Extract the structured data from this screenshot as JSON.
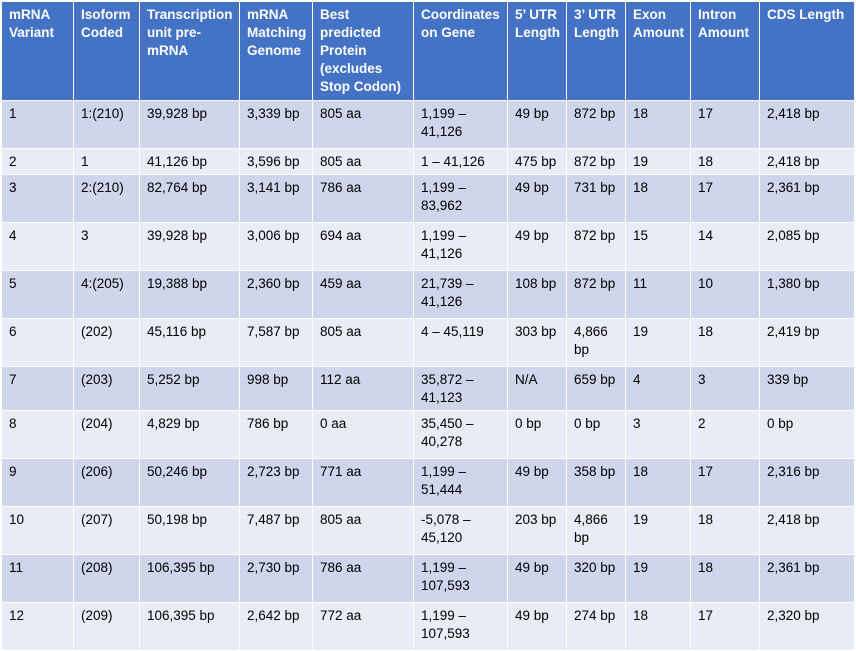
{
  "table": {
    "headers": [
      "mRNA Variant",
      "Isoform Coded",
      "Transcription unit pre-mRNA",
      "mRNA Matching Genome",
      "Best predicted Protein (excludes Stop Codon)",
      "Coordinates on Gene",
      "5’ UTR Length",
      "3’ UTR Length",
      "Exon Amount",
      "Intron Amount",
      "CDS Length"
    ],
    "rows": [
      [
        "1",
        "1:(210)",
        "39,928 bp",
        "3,339 bp",
        "805 aa",
        "1,199 – 41,126",
        "49 bp",
        "872 bp",
        "18",
        "17",
        "2,418 bp"
      ],
      [
        "2",
        "1",
        "41,126 bp",
        "3,596 bp",
        "805 aa",
        "1 – 41,126",
        "475 bp",
        "872 bp",
        "19",
        "18",
        "2,418 bp"
      ],
      [
        "3",
        "2:(210)",
        "82,764 bp",
        "3,141 bp",
        "786 aa",
        "1,199 – 83,962",
        "49 bp",
        "731 bp",
        "18",
        "17",
        "2,361 bp"
      ],
      [
        "4",
        "3",
        "39,928 bp",
        "3,006 bp",
        "694 aa",
        "1,199 – 41,126",
        "49 bp",
        "872 bp",
        "15",
        "14",
        "2,085 bp"
      ],
      [
        "5",
        "4:(205)",
        "19,388 bp",
        "2,360 bp",
        "459 aa",
        "21,739 – 41,126",
        "108 bp",
        "872 bp",
        "11",
        "10",
        "1,380 bp"
      ],
      [
        "6",
        "(202)",
        "45,116 bp",
        "7,587 bp",
        "805 aa",
        "4 – 45,119",
        "303 bp",
        "4,866 bp",
        "19",
        "18",
        "2,419 bp"
      ],
      [
        "7",
        "(203)",
        "5,252 bp",
        "998 bp",
        "112 aa",
        "35,872 – 41,123",
        "N/A",
        "659 bp",
        "4",
        "3",
        "339 bp"
      ],
      [
        "8",
        "(204)",
        "4,829 bp",
        "786 bp",
        "0 aa",
        "35,450 – 40,278",
        "0 bp",
        "0 bp",
        "3",
        "2",
        "0 bp"
      ],
      [
        "9",
        "(206)",
        "50,246 bp",
        "2,723 bp",
        "771 aa",
        "1,199 – 51,444",
        "49 bp",
        "358 bp",
        "18",
        "17",
        "2,316 bp"
      ],
      [
        "10",
        "(207)",
        "50,198 bp",
        "7,487 bp",
        "805 aa",
        "-5,078 – 45,120",
        "203 bp",
        "4,866 bp",
        "19",
        "18",
        "2,418 bp"
      ],
      [
        "11",
        "(208)",
        "106,395 bp",
        "2,730 bp",
        "786 aa",
        "1,199 – 107,593",
        "49 bp",
        "320 bp",
        "19",
        "18",
        "2,361 bp"
      ],
      [
        "12",
        "(209)",
        "106,395 bp",
        "2,642 bp",
        "772 aa",
        "1,199 – 107,593",
        "49 bp",
        "274 bp",
        "18",
        "17",
        "2,320 bp"
      ]
    ],
    "colors": {
      "header_bg": "#4472c4",
      "odd_row_bg": "#cfd5ea",
      "even_row_bg": "#e9ebf5"
    }
  }
}
